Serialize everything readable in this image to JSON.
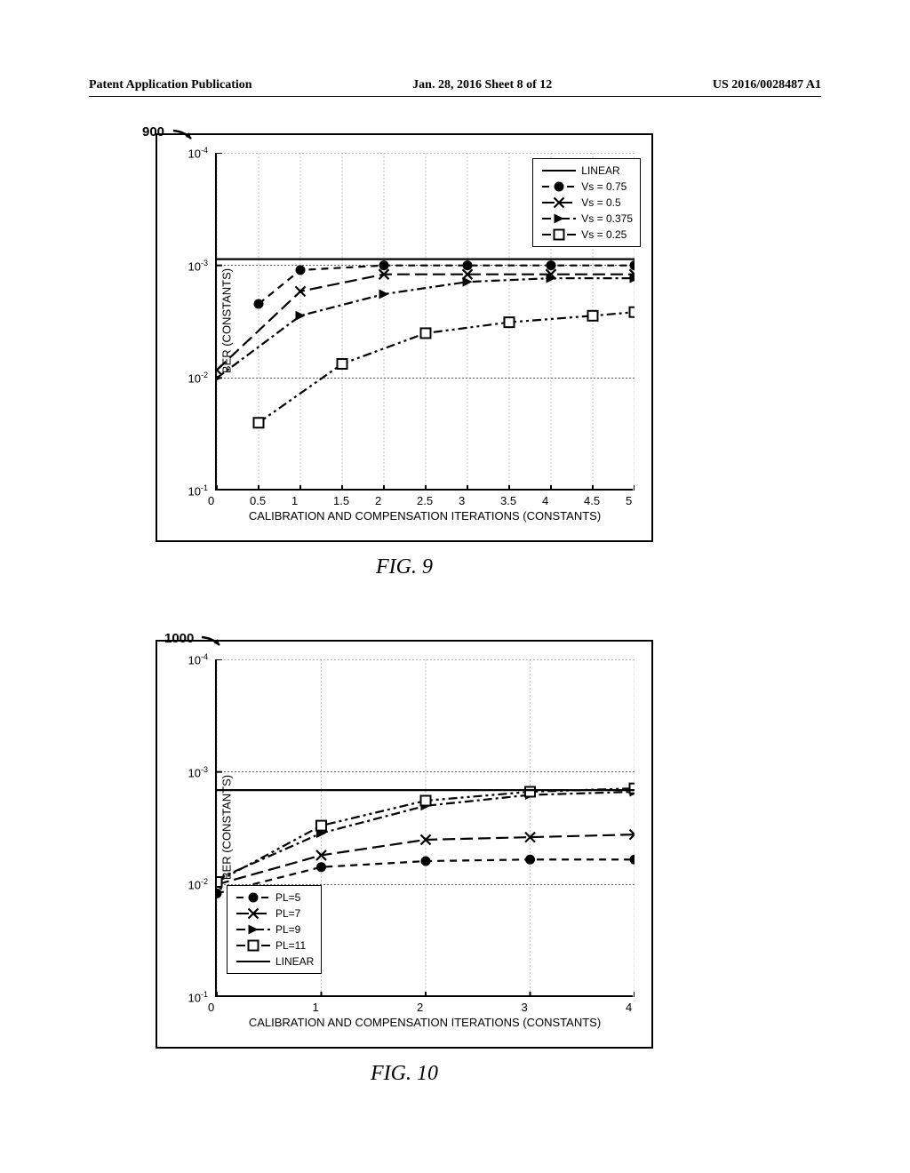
{
  "header": {
    "left": "Patent Application Publication",
    "center": "Jan. 28, 2016  Sheet 8 of 12",
    "right": "US 2016/0028487 A1"
  },
  "fig1": {
    "ref_num": "900",
    "caption": "FIG. 9",
    "ylabel": "BER (CONSTANTS)",
    "xlabel": "CALIBRATION AND COMPENSATION ITERATIONS (CONSTANTS)",
    "xlim": [
      0,
      5
    ],
    "ylim_exp": [
      -4,
      -1
    ],
    "xticks": [
      0,
      0.5,
      1,
      1.5,
      2,
      2.5,
      3,
      3.5,
      4,
      4.5,
      5
    ],
    "yticks_exp": [
      -1,
      -2,
      -3,
      -4
    ],
    "legend_pos": "top-right",
    "minor_grid_color": "#888888",
    "major_grid_color": "#000000",
    "series": [
      {
        "label": "LINEAR",
        "marker": "none",
        "dash": "solid",
        "color": "#000000",
        "x": [
          0,
          5
        ],
        "y": [
          0.00088,
          0.00088
        ]
      },
      {
        "label": "Vs = 0.75",
        "marker": "circle-filled",
        "dash": "dash",
        "color": "#000000",
        "x": [
          0.5,
          1,
          2,
          3,
          4,
          5
        ],
        "y": [
          0.0022,
          0.0011,
          0.001,
          0.001,
          0.001,
          0.001
        ]
      },
      {
        "label": "Vs = 0.5",
        "marker": "x",
        "dash": "longdash",
        "color": "#000000",
        "x": [
          0,
          1,
          2,
          3,
          4,
          5
        ],
        "y": [
          0.0085,
          0.0017,
          0.0012,
          0.0012,
          0.0012,
          0.0012
        ]
      },
      {
        "label": "Vs = 0.375",
        "marker": "triangle-filled",
        "dash": "dashdot",
        "color": "#000000",
        "x": [
          0,
          1,
          2,
          3,
          4,
          5
        ],
        "y": [
          0.01,
          0.0028,
          0.0018,
          0.0014,
          0.0013,
          0.0013
        ]
      },
      {
        "label": "Vs = 0.25",
        "marker": "square-open",
        "dash": "dashdotdot",
        "color": "#000000",
        "x": [
          0.5,
          1.5,
          2.5,
          3.5,
          4.5,
          5
        ],
        "y": [
          0.025,
          0.0075,
          0.004,
          0.0032,
          0.0028,
          0.0026
        ]
      }
    ]
  },
  "fig2": {
    "ref_num": "1000",
    "caption": "FIG. 10",
    "ylabel": "BER (CONSTANTS)",
    "xlabel": "CALIBRATION AND COMPENSATION ITERATIONS (CONSTANTS)",
    "xlim": [
      0,
      4
    ],
    "ylim_exp": [
      -4,
      -1
    ],
    "xticks": [
      0,
      1,
      2,
      3,
      4
    ],
    "yticks_exp": [
      -1,
      -2,
      -3,
      -4
    ],
    "legend_pos": "bottom-left",
    "minor_grid_color": "#888888",
    "major_grid_color": "#000000",
    "series": [
      {
        "label": "PL=5",
        "marker": "circle-filled",
        "dash": "dash",
        "color": "#000000",
        "x": [
          0,
          1,
          2,
          3,
          4
        ],
        "y": [
          0.012,
          0.007,
          0.0062,
          0.006,
          0.006
        ]
      },
      {
        "label": "PL=7",
        "marker": "x",
        "dash": "longdash",
        "color": "#000000",
        "x": [
          0,
          1,
          2,
          3,
          4
        ],
        "y": [
          0.01,
          0.0055,
          0.004,
          0.0038,
          0.0036
        ]
      },
      {
        "label": "PL=9",
        "marker": "triangle-filled",
        "dash": "dashdot",
        "color": "#000000",
        "x": [
          0,
          1,
          2,
          3,
          4
        ],
        "y": [
          0.009,
          0.0035,
          0.002,
          0.0016,
          0.0015
        ]
      },
      {
        "label": "PL=11",
        "marker": "square-open",
        "dash": "dashdotdot",
        "color": "#000000",
        "x": [
          0,
          1,
          2,
          3,
          4
        ],
        "y": [
          0.0095,
          0.003,
          0.0018,
          0.0015,
          0.0014
        ]
      },
      {
        "label": "LINEAR",
        "marker": "none",
        "dash": "solid",
        "color": "#000000",
        "x": [
          0,
          4
        ],
        "y": [
          0.00145,
          0.00145
        ]
      }
    ]
  }
}
